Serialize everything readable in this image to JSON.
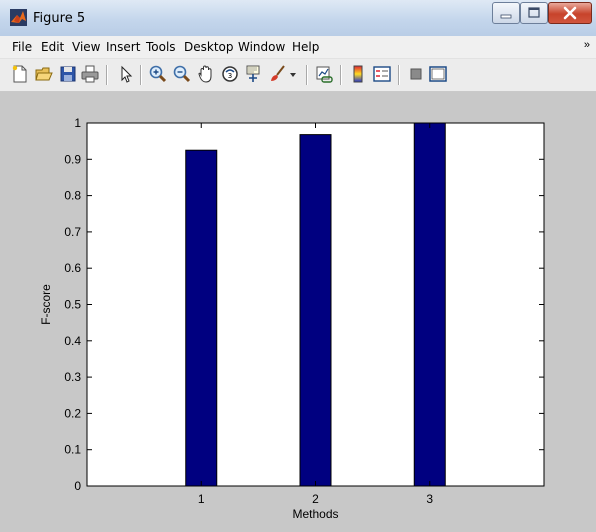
{
  "window": {
    "title": "Figure 5",
    "controls": {
      "minimize": "minimize",
      "maximize": "maximize",
      "close": "close"
    }
  },
  "menu": {
    "items": [
      "File",
      "Edit",
      "View",
      "Insert",
      "Tools",
      "Desktop",
      "Window",
      "Help"
    ],
    "overflow_glyph": "»"
  },
  "toolbar": {
    "icons": [
      "new-figure-icon",
      "open-file-icon",
      "save-icon",
      "print-icon",
      "pointer-icon",
      "zoom-in-icon",
      "zoom-out-icon",
      "pan-icon",
      "rotate-3d-icon",
      "data-cursor-icon",
      "brush-icon",
      "link-plot-icon",
      "colorbar-icon",
      "legend-icon",
      "hide-plot-tools-icon",
      "show-plot-tools-icon"
    ]
  },
  "colors": {
    "bar": "#000080",
    "figure_bg": "#c8c8c8",
    "axes_bg": "#ffffff"
  },
  "chart_data": {
    "type": "bar",
    "categories": [
      "1",
      "2",
      "3"
    ],
    "values": [
      0.925,
      0.968,
      1.0
    ],
    "xlabel": "Methods",
    "ylabel": "F-score",
    "ylim": [
      0,
      1
    ],
    "yticks": [
      "0",
      "0.1",
      "0.2",
      "0.3",
      "0.4",
      "0.5",
      "0.6",
      "0.7",
      "0.8",
      "0.9",
      "1"
    ],
    "grid": false
  }
}
